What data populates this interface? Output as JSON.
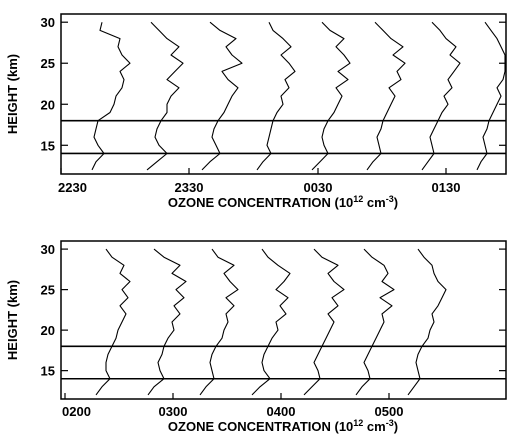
{
  "chart_data": [
    {
      "type": "line",
      "ylabel": "HEIGHT (km)",
      "xlabel": "OZONE CONCENTRATION (10",
      "xlabel_exp": "12",
      "xlabel_unit": " cm",
      "xlabel_unit_exp": "-3",
      "xlabel_close": ")",
      "ylim": [
        11.5,
        31
      ],
      "y_ticks": [
        "15",
        "20",
        "25",
        "30"
      ],
      "x_ticks": [
        "2230",
        "2330",
        "0030",
        "0130"
      ],
      "reference_lines_km": [
        14.0,
        18.0
      ],
      "series": [
        {
          "time": "2230",
          "height_km": [
            12,
            13,
            14,
            15,
            16,
            17,
            18,
            19,
            20,
            21,
            22,
            23,
            24,
            25,
            26,
            27,
            28,
            29,
            30
          ],
          "offset": [
            0.0,
            0.2,
            0.6,
            0.3,
            0.1,
            0.2,
            0.3,
            0.9,
            1.1,
            1.2,
            1.5,
            1.6,
            1.4,
            1.9,
            1.5,
            1.3,
            1.4,
            0.4,
            0.5
          ]
        },
        {
          "time": "2300",
          "height_km": [
            12,
            13,
            14,
            15,
            16,
            17,
            18,
            19,
            20,
            21,
            22,
            23,
            24,
            25,
            26,
            27,
            28,
            29,
            30
          ],
          "offset": [
            0.0,
            0.5,
            1.0,
            0.6,
            0.4,
            0.5,
            0.7,
            1.0,
            1.0,
            1.2,
            1.6,
            1.0,
            1.4,
            1.8,
            1.2,
            1.6,
            1.0,
            0.6,
            0.2
          ]
        },
        {
          "time": "2330",
          "height_km": [
            12,
            13,
            14,
            15,
            16,
            17,
            18,
            19,
            20,
            21,
            22,
            23,
            24,
            25,
            26,
            27,
            28,
            29,
            30
          ],
          "offset": [
            0.0,
            0.4,
            0.9,
            0.7,
            0.5,
            0.6,
            0.8,
            1.1,
            1.3,
            1.5,
            1.8,
            1.3,
            1.0,
            2.0,
            1.5,
            1.2,
            1.7,
            0.9,
            0.4
          ]
        },
        {
          "time": "0000",
          "height_km": [
            12,
            13,
            14,
            15,
            16,
            17,
            18,
            19,
            20,
            21,
            22,
            23,
            24,
            25,
            26,
            27,
            28,
            29,
            30
          ],
          "offset": [
            0.0,
            0.3,
            0.7,
            0.5,
            0.6,
            0.7,
            0.8,
            1.0,
            1.3,
            1.2,
            1.6,
            1.4,
            1.9,
            1.6,
            1.2,
            1.7,
            1.3,
            0.8,
            0.6
          ]
        },
        {
          "time": "0030",
          "height_km": [
            12,
            13,
            14,
            15,
            16,
            17,
            18,
            19,
            20,
            21,
            22,
            23,
            24,
            25,
            26,
            27,
            28,
            29,
            30
          ],
          "offset": [
            0.0,
            0.4,
            0.8,
            0.6,
            0.5,
            0.6,
            0.8,
            1.1,
            1.3,
            1.5,
            1.2,
            1.8,
            1.3,
            1.9,
            1.6,
            1.2,
            1.6,
            0.9,
            0.5
          ]
        },
        {
          "time": "0100",
          "height_km": [
            12,
            13,
            14,
            15,
            16,
            17,
            18,
            19,
            20,
            21,
            22,
            23,
            24,
            25,
            26,
            27,
            28,
            29,
            30
          ],
          "offset": [
            0.0,
            0.3,
            0.7,
            0.6,
            0.5,
            0.7,
            0.8,
            1.0,
            1.2,
            1.4,
            1.1,
            1.7,
            1.5,
            1.9,
            1.3,
            1.8,
            1.2,
            0.8,
            0.4
          ]
        },
        {
          "time": "0130",
          "height_km": [
            12,
            13,
            14,
            15,
            16,
            17,
            18,
            19,
            20,
            21,
            22,
            23,
            24,
            25,
            26,
            27,
            28,
            29,
            30
          ],
          "offset": [
            0.0,
            0.3,
            0.6,
            0.5,
            0.4,
            0.6,
            0.8,
            1.0,
            1.3,
            1.1,
            1.5,
            1.3,
            1.6,
            1.9,
            1.4,
            1.7,
            1.2,
            0.9,
            0.5
          ]
        },
        {
          "time": "0200",
          "height_km": [
            12,
            13,
            14,
            15,
            16,
            17,
            18,
            19,
            20,
            21,
            22,
            23,
            24,
            25,
            26,
            27,
            28,
            29,
            30
          ],
          "offset": [
            0.0,
            0.2,
            0.5,
            0.4,
            0.3,
            0.5,
            0.6,
            0.8,
            1.0,
            1.2,
            1.0,
            1.3,
            1.5,
            1.9,
            1.4,
            1.2,
            1.0,
            0.7,
            0.4
          ]
        }
      ]
    },
    {
      "type": "line",
      "ylabel": "HEIGHT (km)",
      "xlabel": "OZONE CONCENTRATION (10",
      "xlabel_exp": "12",
      "xlabel_unit": " cm",
      "xlabel_unit_exp": "-3",
      "xlabel_close": ")",
      "ylim": [
        11.5,
        31
      ],
      "y_ticks": [
        "15",
        "20",
        "25",
        "30"
      ],
      "x_ticks": [
        "0200",
        "0300",
        "0400",
        "0500"
      ],
      "reference_lines_km": [
        14.0,
        18.0
      ],
      "series": [
        {
          "time": "0200",
          "height_km": [
            12,
            13,
            14,
            15,
            16,
            17,
            18,
            19,
            20,
            21,
            22,
            23,
            24,
            25,
            26,
            27,
            28,
            29,
            30
          ],
          "offset": [
            0.0,
            0.3,
            0.7,
            0.5,
            0.5,
            0.6,
            0.8,
            1.0,
            1.1,
            1.3,
            1.5,
            1.2,
            1.6,
            1.3,
            1.7,
            1.2,
            1.4,
            0.8,
            0.5
          ]
        },
        {
          "time": "0230",
          "height_km": [
            12,
            13,
            14,
            15,
            16,
            17,
            18,
            19,
            20,
            21,
            22,
            23,
            24,
            25,
            26,
            27,
            28,
            29,
            30
          ],
          "offset": [
            0.0,
            0.3,
            0.8,
            0.6,
            0.5,
            0.7,
            0.8,
            1.0,
            1.3,
            1.2,
            1.6,
            1.3,
            1.8,
            1.4,
            1.9,
            1.2,
            1.6,
            0.8,
            0.3
          ]
        },
        {
          "time": "0300",
          "height_km": [
            12,
            13,
            14,
            15,
            16,
            17,
            18,
            19,
            20,
            21,
            22,
            23,
            24,
            25,
            26,
            27,
            28,
            29,
            30
          ],
          "offset": [
            0.0,
            0.3,
            0.7,
            0.6,
            0.5,
            0.6,
            0.8,
            1.1,
            1.2,
            1.4,
            1.3,
            1.7,
            1.3,
            1.9,
            1.5,
            1.2,
            1.7,
            0.9,
            0.6
          ]
        },
        {
          "time": "0330",
          "height_km": [
            12,
            13,
            14,
            15,
            16,
            17,
            18,
            19,
            20,
            21,
            22,
            23,
            24,
            25,
            26,
            27,
            28,
            29,
            30
          ],
          "offset": [
            0.0,
            0.4,
            0.9,
            0.6,
            0.5,
            0.6,
            0.8,
            1.0,
            1.3,
            1.2,
            1.7,
            1.4,
            1.8,
            1.2,
            1.6,
            1.9,
            1.3,
            0.8,
            0.5
          ]
        },
        {
          "time": "0400",
          "height_km": [
            12,
            13,
            14,
            15,
            16,
            17,
            18,
            19,
            20,
            21,
            22,
            23,
            24,
            25,
            26,
            27,
            28,
            29,
            30
          ],
          "offset": [
            0.0,
            0.4,
            0.8,
            0.7,
            0.5,
            0.7,
            0.9,
            1.1,
            1.3,
            1.5,
            1.2,
            1.7,
            1.4,
            2.0,
            1.5,
            1.2,
            1.7,
            0.9,
            0.5
          ]
        },
        {
          "time": "0430",
          "height_km": [
            12,
            13,
            14,
            15,
            16,
            17,
            18,
            19,
            20,
            21,
            22,
            23,
            24,
            25,
            26,
            27,
            28,
            29,
            30
          ],
          "offset": [
            0.0,
            0.3,
            0.7,
            0.6,
            0.4,
            0.6,
            0.8,
            1.0,
            1.2,
            1.4,
            1.3,
            1.8,
            1.2,
            1.9,
            1.3,
            1.6,
            1.4,
            0.8,
            0.4
          ]
        },
        {
          "time": "0500",
          "height_km": [
            12,
            13,
            14,
            15,
            16,
            17,
            18,
            19,
            20,
            21,
            22,
            23,
            24,
            25,
            26,
            27,
            28,
            29,
            30
          ],
          "offset": [
            0.0,
            0.3,
            0.6,
            0.5,
            0.4,
            0.5,
            0.7,
            1.0,
            1.1,
            1.3,
            1.2,
            1.5,
            1.7,
            1.9,
            1.5,
            1.3,
            1.2,
            0.8,
            0.5
          ]
        }
      ]
    }
  ]
}
